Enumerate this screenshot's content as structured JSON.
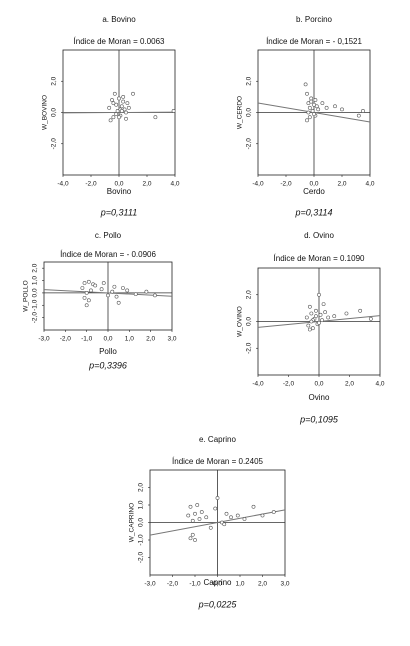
{
  "chart_data": [
    {
      "type": "scatter",
      "title": "a. Bovino",
      "subtitle": "Índice de Moran = 0.0063",
      "x_label": "Bovino",
      "y_label": "W_BOVINO",
      "caption": "p=0,3111",
      "x": [
        -0.7,
        -0.5,
        -0.4,
        -0.3,
        -0.2,
        -0.1,
        0.0,
        0.1,
        0.2,
        0.3,
        0.4,
        0.5,
        0.6,
        0.7,
        -0.6,
        -0.2,
        0.1,
        0.3,
        0.5,
        -0.4,
        0.0,
        0.2,
        1.0,
        2.6,
        3.9
      ],
      "y": [
        0.3,
        0.8,
        -0.3,
        1.2,
        0.5,
        0.1,
        0.9,
        -0.2,
        0.4,
        0.7,
        0.2,
        -0.4,
        0.6,
        0.3,
        -0.5,
        -0.1,
        0.2,
        1.0,
        0.0,
        0.6,
        -0.3,
        0.1,
        1.2,
        -0.3,
        0.1
      ],
      "trend_y": [
        -0.025,
        0.025
      ],
      "color": "#555555",
      "line_color": "#777777",
      "xlim": [
        -4,
        4
      ],
      "ylim": [
        -4,
        4
      ],
      "xticks": [
        {
          "value": -4,
          "label": "-4,0"
        },
        {
          "value": -2,
          "label": "-2,0"
        },
        {
          "value": 0,
          "label": "0,0"
        },
        {
          "value": 2,
          "label": "2,0"
        },
        {
          "value": 4,
          "label": "4,0"
        }
      ],
      "yticks": [
        {
          "value": -2,
          "label": "-2,0"
        },
        {
          "value": 0,
          "label": "0,0"
        },
        {
          "value": 2,
          "label": "2,0"
        }
      ]
    },
    {
      "type": "scatter",
      "title": "b. Porcino",
      "subtitle": "Índice de Moran = - 0,1521",
      "x_label": "Cerdo",
      "y_label": "W_CERDO",
      "caption": "p=0,3114",
      "x": [
        -0.6,
        -0.5,
        -0.4,
        -0.3,
        -0.2,
        -0.1,
        0.0,
        0.1,
        0.2,
        -0.5,
        -0.3,
        -0.2,
        0.0,
        0.3,
        0.6,
        0.9,
        1.5,
        2.0,
        3.2,
        3.5,
        -0.4,
        0.1
      ],
      "y": [
        1.8,
        1.2,
        0.6,
        0.3,
        0.9,
        0.1,
        0.5,
        -0.2,
        0.4,
        -0.5,
        -0.3,
        0.7,
        -0.1,
        0.2,
        0.6,
        0.3,
        0.4,
        0.2,
        -0.2,
        0.1,
        0.0,
        0.8
      ],
      "trend_y": [
        0.61,
        -0.61
      ],
      "color": "#555555",
      "line_color": "#777777",
      "xlim": [
        -4,
        4
      ],
      "ylim": [
        -4,
        4
      ],
      "xticks": [
        {
          "value": -4,
          "label": "-4,0"
        },
        {
          "value": -2,
          "label": "-2,0"
        },
        {
          "value": 0,
          "label": "0,0"
        },
        {
          "value": 2,
          "label": "2,0"
        },
        {
          "value": 4,
          "label": "4,0"
        }
      ],
      "yticks": [
        {
          "value": -2,
          "label": "-2,0"
        },
        {
          "value": 0,
          "label": "0,0"
        },
        {
          "value": 2,
          "label": "2,0"
        }
      ]
    },
    {
      "type": "scatter",
      "title": "c. Pollo",
      "subtitle": "Índice de Moran = - 0.0906",
      "x_label": "Pollo",
      "y_label": "W_POLLO",
      "caption": "p=0,3396",
      "x": [
        -1.2,
        -1.1,
        -1.0,
        -0.9,
        -0.8,
        -0.7,
        -1.1,
        -0.9,
        -0.6,
        -0.3,
        -0.2,
        0.0,
        0.2,
        0.4,
        0.5,
        0.7,
        0.9,
        1.3,
        1.8,
        2.2,
        -1.0,
        0.3
      ],
      "y": [
        0.4,
        0.8,
        -1.0,
        0.9,
        0.2,
        0.7,
        -0.4,
        -0.6,
        0.6,
        0.3,
        0.8,
        -0.2,
        0.1,
        -0.3,
        -0.8,
        0.4,
        0.2,
        -0.1,
        0.1,
        -0.2,
        0.0,
        0.5
      ],
      "trend_y": [
        0.27,
        -0.27
      ],
      "color": "#555555",
      "line_color": "#777777",
      "xlim": [
        -3,
        3
      ],
      "ylim": [
        -3,
        2.5
      ],
      "xticks": [
        {
          "value": -3,
          "label": "-3,0"
        },
        {
          "value": -2,
          "label": "-2,0"
        },
        {
          "value": -1,
          "label": "-1,0"
        },
        {
          "value": 0,
          "label": "0,0"
        },
        {
          "value": 1,
          "label": "1,0"
        },
        {
          "value": 2,
          "label": "2,0"
        },
        {
          "value": 3,
          "label": "3,0"
        }
      ],
      "yticks": [
        {
          "value": -2,
          "label": "-2,0"
        },
        {
          "value": -1,
          "label": "-1,0"
        },
        {
          "value": 0,
          "label": "0,0"
        },
        {
          "value": 1,
          "label": "1,0"
        },
        {
          "value": 2,
          "label": "2,0"
        }
      ]
    },
    {
      "type": "scatter",
      "title": "d. Ovino",
      "subtitle": "Índice de Moran = 0.1090",
      "x_label": "Ovino",
      "y_label": "W_OVINO",
      "caption": "p=0,1095",
      "x": [
        -0.8,
        -0.7,
        -0.6,
        -0.5,
        -0.4,
        -0.3,
        -0.2,
        -0.1,
        0.0,
        0.1,
        0.2,
        0.4,
        0.6,
        -0.6,
        -0.4,
        -0.2,
        0.0,
        1.0,
        1.8,
        2.7,
        3.4,
        -0.5,
        0.3
      ],
      "y": [
        0.3,
        -0.3,
        1.1,
        0.6,
        -0.5,
        0.2,
        0.8,
        -0.2,
        2.0,
        0.5,
        0.1,
        0.7,
        0.3,
        -0.6,
        0.1,
        0.4,
        -0.1,
        0.4,
        0.6,
        0.8,
        0.2,
        0.0,
        1.3
      ],
      "trend_y": [
        -0.44,
        0.44
      ],
      "color": "#555555",
      "line_color": "#777777",
      "xlim": [
        -4,
        4
      ],
      "ylim": [
        -4,
        4
      ],
      "xticks": [
        {
          "value": -4,
          "label": "-4,0"
        },
        {
          "value": -2,
          "label": "-2,0"
        },
        {
          "value": 0,
          "label": "0,0"
        },
        {
          "value": 2,
          "label": "2,0"
        },
        {
          "value": 4,
          "label": "4,0"
        }
      ],
      "yticks": [
        {
          "value": -2,
          "label": "-2,0"
        },
        {
          "value": 0,
          "label": "0,0"
        },
        {
          "value": 2,
          "label": "2,0"
        }
      ]
    },
    {
      "type": "scatter",
      "title": "e. Caprino",
      "subtitle": "Índice de Moran = 0.2405",
      "x_label": "Caprino",
      "y_label": "W_CAPRINO",
      "caption": "p=0,0225",
      "x": [
        -1.3,
        -1.2,
        -1.1,
        -1.0,
        -0.9,
        -0.8,
        -1.2,
        -1.0,
        -0.7,
        -0.5,
        -0.3,
        -0.1,
        0.0,
        0.2,
        0.4,
        0.6,
        0.9,
        1.2,
        1.6,
        2.0,
        2.5,
        -1.1,
        0.3
      ],
      "y": [
        0.4,
        0.9,
        -0.7,
        0.5,
        1.0,
        0.2,
        -0.9,
        -1.0,
        0.6,
        0.3,
        -0.3,
        0.8,
        1.4,
        0.0,
        0.5,
        0.3,
        0.4,
        0.2,
        0.9,
        0.4,
        0.6,
        0.1,
        -0.1
      ],
      "trend_y": [
        -0.72,
        0.72
      ],
      "color": "#555555",
      "line_color": "#777777",
      "xlim": [
        -3,
        3
      ],
      "ylim": [
        -3,
        3
      ],
      "xticks": [
        {
          "value": -3,
          "label": "-3,0"
        },
        {
          "value": -2,
          "label": "-2,0"
        },
        {
          "value": -1,
          "label": "-1,0"
        },
        {
          "value": 0,
          "label": "0,0"
        },
        {
          "value": 1,
          "label": "1,0"
        },
        {
          "value": 2,
          "label": "2,0"
        },
        {
          "value": 3,
          "label": "3,0"
        }
      ],
      "yticks": [
        {
          "value": -2,
          "label": "-2,0"
        },
        {
          "value": -1,
          "label": "-1,0"
        },
        {
          "value": 0,
          "label": "0,0"
        },
        {
          "value": 1,
          "label": "1,0"
        },
        {
          "value": 2,
          "label": "2,0"
        }
      ]
    }
  ]
}
